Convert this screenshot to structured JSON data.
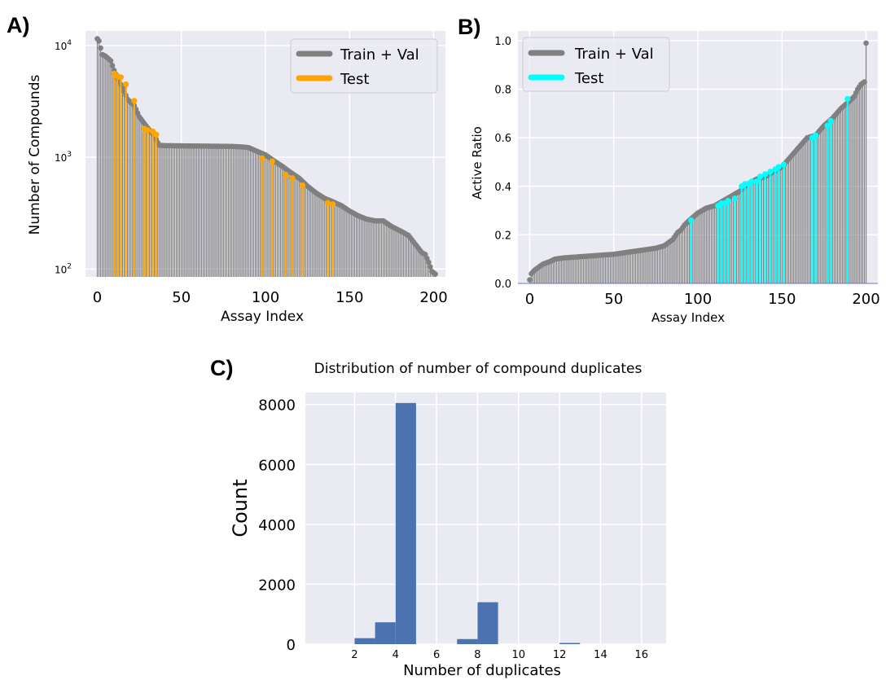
{
  "figure": {
    "panels": [
      {
        "id": "A",
        "label": "A)",
        "ylabel": "Number of Compounds",
        "xlabel": "Assay Index",
        "x_ticks": [
          "0",
          "50",
          "100",
          "150",
          "200"
        ],
        "y_ticks": [
          {
            "value": 100,
            "label": "10",
            "exp": "2"
          },
          {
            "value": 1000,
            "label": "10",
            "exp": "3"
          },
          {
            "value": 10000,
            "label": "10",
            "exp": "4"
          }
        ],
        "legend": [
          {
            "name": "Train + Val",
            "color": "#808080"
          },
          {
            "name": "Test",
            "color": "#ffa500"
          }
        ]
      },
      {
        "id": "B",
        "label": "B)",
        "ylabel": "Active Ratio",
        "xlabel": "Assay Index",
        "x_ticks": [
          "0",
          "50",
          "100",
          "150",
          "200"
        ],
        "y_ticks": [
          "0.0",
          "0.2",
          "0.4",
          "0.6",
          "0.8",
          "1.0"
        ],
        "legend": [
          {
            "name": "Train + Val",
            "color": "#808080"
          },
          {
            "name": "Test",
            "color": "#00ffff"
          }
        ]
      },
      {
        "id": "C",
        "label": "C)",
        "title": "Distribution of number of compound duplicates",
        "ylabel": "Count",
        "xlabel": "Number of duplicates",
        "x_ticks": [
          "2",
          "4",
          "6",
          "8",
          "10",
          "12",
          "14",
          "16"
        ],
        "y_ticks": [
          "0",
          "2000",
          "4000",
          "6000",
          "8000"
        ]
      }
    ]
  },
  "chart_data": [
    {
      "type": "stem",
      "panel": "A",
      "scale": "log",
      "xlim": [
        -7,
        207
      ],
      "ylim": [
        85,
        13500
      ],
      "series": [
        {
          "name": "Train + Val",
          "color": "#808080",
          "x": [
            0,
            1,
            2,
            3,
            5,
            8,
            10,
            12,
            15,
            18,
            22,
            25,
            28,
            31,
            34,
            36,
            37,
            40,
            50,
            60,
            70,
            80,
            85,
            90,
            95,
            100,
            105,
            110,
            115,
            120,
            125,
            130,
            135,
            140,
            145,
            150,
            155,
            160,
            165,
            170,
            175,
            180,
            185,
            190,
            193,
            195,
            197,
            199,
            201
          ],
          "y": [
            11500,
            11000,
            9500,
            8300,
            8000,
            7300,
            6000,
            5100,
            4200,
            3300,
            2900,
            2300,
            2000,
            1750,
            1550,
            1350,
            1280,
            1270,
            1265,
            1260,
            1255,
            1250,
            1240,
            1220,
            1130,
            1050,
            930,
            830,
            730,
            650,
            550,
            480,
            430,
            400,
            370,
            330,
            300,
            280,
            270,
            270,
            240,
            220,
            200,
            160,
            140,
            135,
            115,
            95,
            90
          ]
        },
        {
          "name": "Test",
          "color": "#ffa500",
          "x": [
            10,
            12,
            14,
            17,
            22,
            28,
            30,
            33,
            35,
            98,
            104,
            112,
            116,
            122,
            137,
            140
          ],
          "y": [
            5600,
            5300,
            5200,
            4500,
            3200,
            1800,
            1750,
            1700,
            1600,
            980,
            920,
            700,
            650,
            560,
            390,
            380
          ]
        }
      ]
    },
    {
      "type": "stem",
      "panel": "B",
      "scale": "linear",
      "xlim": [
        -7,
        207
      ],
      "ylim": [
        0.0,
        1.04
      ],
      "series": [
        {
          "name": "Train + Val",
          "color": "#808080",
          "x": [
            0,
            1,
            3,
            5,
            8,
            12,
            15,
            20,
            30,
            40,
            50,
            60,
            70,
            75,
            80,
            85,
            88,
            90,
            92,
            95,
            100,
            105,
            110,
            115,
            120,
            125,
            130,
            135,
            140,
            145,
            150,
            155,
            160,
            165,
            170,
            175,
            180,
            185,
            190,
            193,
            195,
            197,
            199,
            200
          ],
          "y": [
            0.015,
            0.04,
            0.055,
            0.065,
            0.08,
            0.09,
            0.1,
            0.105,
            0.11,
            0.115,
            0.12,
            0.13,
            0.14,
            0.145,
            0.155,
            0.18,
            0.21,
            0.22,
            0.24,
            0.26,
            0.29,
            0.31,
            0.32,
            0.34,
            0.36,
            0.38,
            0.41,
            0.43,
            0.44,
            0.46,
            0.48,
            0.52,
            0.56,
            0.6,
            0.61,
            0.65,
            0.68,
            0.72,
            0.75,
            0.77,
            0.8,
            0.82,
            0.83,
            0.99
          ]
        },
        {
          "name": "Test",
          "color": "#00ffff",
          "x": [
            96,
            112,
            114,
            116,
            118,
            122,
            126,
            128,
            130,
            132,
            135,
            137,
            140,
            143,
            146,
            148,
            151,
            168,
            170,
            177,
            179,
            189
          ],
          "y": [
            0.26,
            0.32,
            0.33,
            0.33,
            0.34,
            0.35,
            0.4,
            0.41,
            0.41,
            0.42,
            0.42,
            0.44,
            0.45,
            0.46,
            0.47,
            0.48,
            0.49,
            0.6,
            0.61,
            0.65,
            0.67,
            0.76
          ]
        }
      ]
    },
    {
      "type": "bar",
      "panel": "C",
      "title": "Distribution of number of compound duplicates",
      "xlabel": "Number of duplicates",
      "ylabel": "Count",
      "xlim": [
        -0.4,
        17.2
      ],
      "ylim": [
        0,
        8400
      ],
      "bar_color": "#4c72b0",
      "bins": [
        {
          "x0": 2,
          "x1": 3,
          "value": 200
        },
        {
          "x0": 3,
          "x1": 4,
          "value": 730
        },
        {
          "x0": 4,
          "x1": 5,
          "value": 8050
        },
        {
          "x0": 7,
          "x1": 8,
          "value": 170
        },
        {
          "x0": 8,
          "x1": 9,
          "value": 1400
        },
        {
          "x0": 12,
          "x1": 13,
          "value": 40
        }
      ]
    }
  ]
}
